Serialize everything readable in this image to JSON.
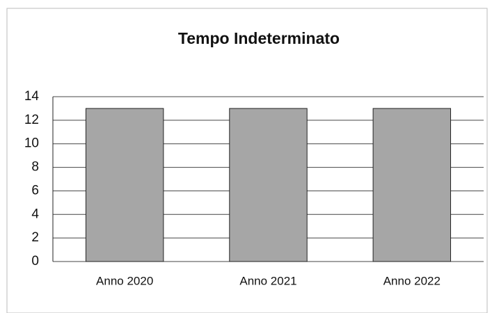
{
  "chart_data": {
    "type": "bar",
    "title": "Tempo Indeterminato",
    "categories": [
      "Anno 2020",
      "Anno 2021",
      "Anno 2022"
    ],
    "values": [
      13,
      13,
      13
    ],
    "color": "#a6a6a6",
    "ylim": [
      0,
      14
    ],
    "yticks": [
      0,
      2,
      4,
      6,
      8,
      10,
      12,
      14
    ],
    "grid": true
  }
}
